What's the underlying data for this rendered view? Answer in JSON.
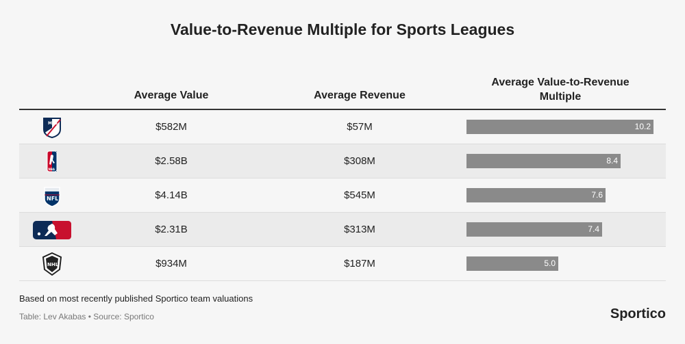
{
  "title": "Value-to-Revenue Multiple for Sports Leagues",
  "columns": {
    "value": "Average Value",
    "revenue": "Average Revenue",
    "multiple_line1": "Average Value-to-Revenue",
    "multiple_line2": "Multiple"
  },
  "colors": {
    "bar": "#8a8a8a",
    "row_alt": "#ebebeb",
    "mlb_blue": "#0d2b56",
    "mlb_red": "#c8102e",
    "nfl_blue": "#013369",
    "nba_red": "#c9082a"
  },
  "chart_data": {
    "type": "table",
    "title": "Value-to-Revenue Multiple for Sports Leagues",
    "xlim": [
      0,
      10.2
    ],
    "rows": [
      {
        "league": "MLS",
        "logo": "mls-logo-icon",
        "value": "$582M",
        "revenue": "$57M",
        "multiple": 10.2,
        "multiple_label": "10.2"
      },
      {
        "league": "NBA",
        "logo": "nba-logo-icon",
        "value": "$2.58B",
        "revenue": "$308M",
        "multiple": 8.4,
        "multiple_label": "8.4"
      },
      {
        "league": "NFL",
        "logo": "nfl-logo-icon",
        "value": "$4.14B",
        "revenue": "$545M",
        "multiple": 7.6,
        "multiple_label": "7.6"
      },
      {
        "league": "MLB",
        "logo": "mlb-logo-icon",
        "value": "$2.31B",
        "revenue": "$313M",
        "multiple": 7.4,
        "multiple_label": "7.4"
      },
      {
        "league": "NHL",
        "logo": "nhl-logo-icon",
        "value": "$934M",
        "revenue": "$187M",
        "multiple": 5.0,
        "multiple_label": "5.0"
      }
    ]
  },
  "footer": {
    "note": "Based on most recently published Sportico team valuations",
    "credit": "Table: Lev Akabas • Source: Sportico",
    "brand": "Sportico"
  }
}
